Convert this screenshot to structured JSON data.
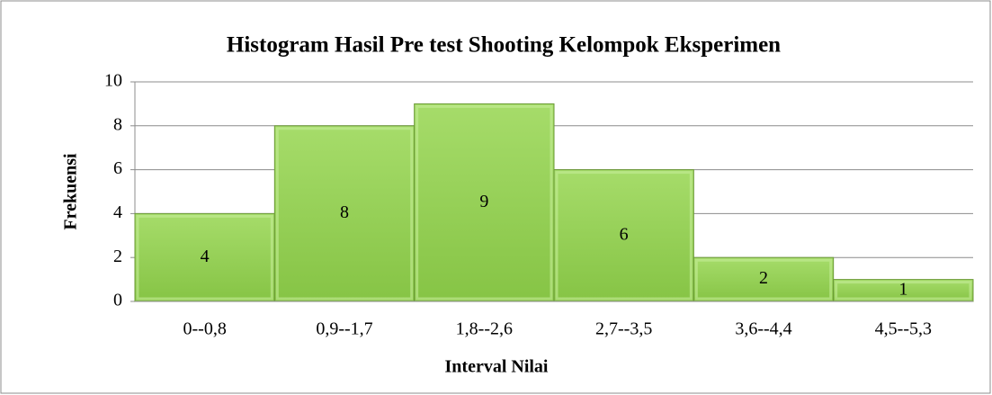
{
  "chart_data": {
    "type": "bar",
    "title": "Histogram Hasil Pre test Shooting Kelompok Eksperimen",
    "x_label": "Interval Nilai",
    "y_label": "Frekuensi",
    "categories": [
      "0--0,8",
      "0,9--1,7",
      "1,8--2,6",
      "2,7--3,5",
      "3,6--4,4",
      "4,5--5,3"
    ],
    "values": [
      4,
      8,
      9,
      6,
      2,
      1
    ],
    "color": "#92d050",
    "ylim": [
      0,
      10
    ],
    "yticks": [
      0,
      2,
      4,
      6,
      8,
      10
    ],
    "grid": true
  }
}
